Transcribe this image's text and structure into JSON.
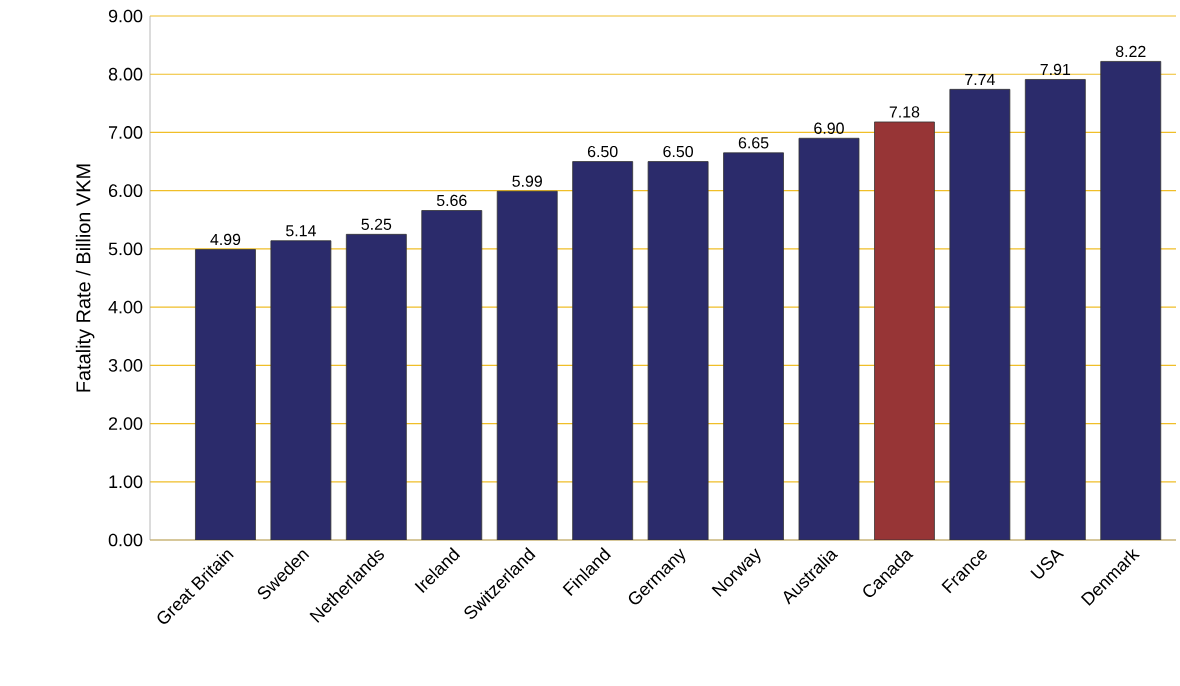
{
  "chart_data": {
    "type": "bar",
    "ylabel": "Fatality Rate / Billion VKM",
    "categories": [
      "Great Britain",
      "Sweden",
      "Netherlands",
      "Ireland",
      "Switzerland",
      "Finland",
      "Germany",
      "Norway",
      "Australia",
      "Canada",
      "France",
      "USA",
      "Denmark"
    ],
    "values": [
      4.99,
      5.14,
      5.25,
      5.66,
      5.99,
      6.5,
      6.5,
      6.65,
      6.9,
      7.18,
      7.74,
      7.91,
      8.22
    ],
    "value_labels": [
      "4.99",
      "5.14",
      "5.25",
      "5.66",
      "5.99",
      "6.50",
      "6.50",
      "6.65",
      "6.90",
      "7.18",
      "7.74",
      "7.91",
      "8.22"
    ],
    "colors": [
      "#2b2b6b",
      "#2b2b6b",
      "#2b2b6b",
      "#2b2b6b",
      "#2b2b6b",
      "#2b2b6b",
      "#2b2b6b",
      "#2b2b6b",
      "#2b2b6b",
      "#973536",
      "#2b2b6b",
      "#2b2b6b",
      "#2b2b6b"
    ],
    "ylim": [
      0,
      9
    ],
    "yticks": [
      {
        "value": 0,
        "label": "0.00"
      },
      {
        "value": 1,
        "label": "1.00"
      },
      {
        "value": 2,
        "label": "2.00"
      },
      {
        "value": 3,
        "label": "3.00"
      },
      {
        "value": 4,
        "label": "4.00"
      },
      {
        "value": 5,
        "label": "5.00"
      },
      {
        "value": 6,
        "label": "6.00"
      },
      {
        "value": 7,
        "label": "7.00"
      },
      {
        "value": 8,
        "label": "8.00"
      },
      {
        "value": 9,
        "label": "9.00"
      }
    ],
    "grid": "y"
  }
}
